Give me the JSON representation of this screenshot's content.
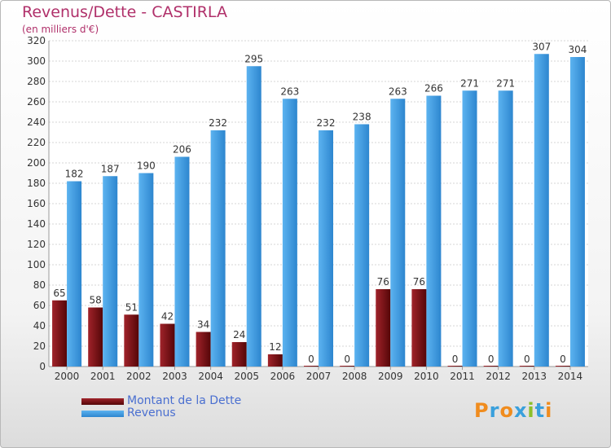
{
  "title": "Revenus/Dette - CASTIRLA",
  "subtitle": "(en milliers d'€)",
  "logo_text": "Proxiti",
  "chart_data": {
    "type": "bar",
    "categories": [
      "2000",
      "2001",
      "2002",
      "2003",
      "2004",
      "2005",
      "2006",
      "2007",
      "2008",
      "2009",
      "2010",
      "2011",
      "2012",
      "2013",
      "2014"
    ],
    "series": [
      {
        "name": "Montant de la Dette",
        "values": [
          65,
          58,
          51,
          42,
          34,
          24,
          12,
          0,
          0,
          76,
          76,
          0,
          0,
          0,
          0
        ],
        "color": "#7a0f12"
      },
      {
        "name": "Revenus",
        "values": [
          182,
          187,
          190,
          206,
          232,
          295,
          263,
          232,
          238,
          263,
          266,
          271,
          271,
          307,
          304
        ],
        "color": "#3d9be3"
      }
    ],
    "ylim": [
      0,
      320
    ],
    "ytick_step": 20,
    "grid": true,
    "legend_position": "bottom-left"
  }
}
